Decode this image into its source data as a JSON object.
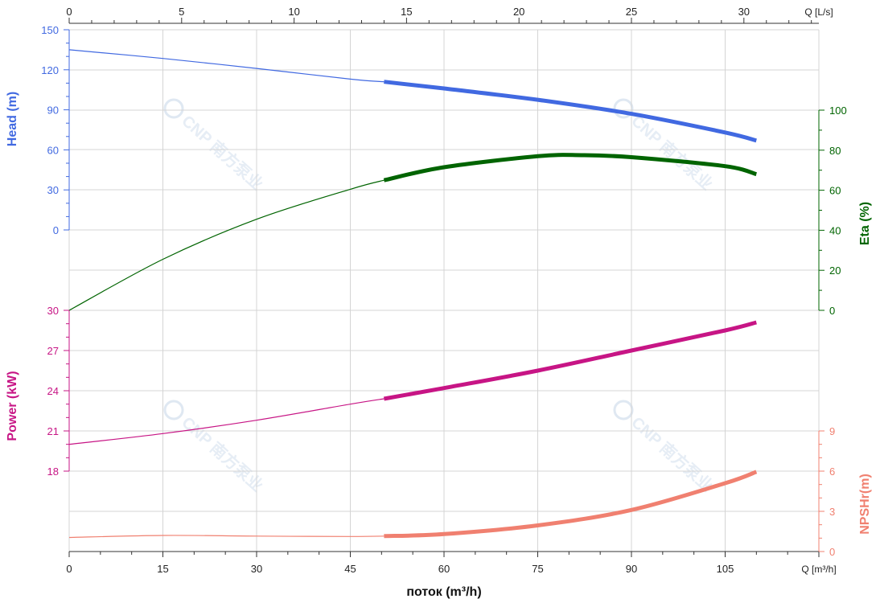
{
  "chart_data": {
    "type": "line",
    "x_axis": {
      "label": "поток (m³/h)",
      "unit_label": "Q [m³/h]",
      "range": [
        0,
        120
      ],
      "ticks": [
        0,
        15,
        30,
        45,
        60,
        75,
        90,
        105
      ]
    },
    "x2_axis": {
      "unit_label": "Q [L/s]",
      "range": [
        0,
        33.333
      ],
      "ticks": [
        0,
        5,
        10,
        15,
        20,
        25,
        30
      ]
    },
    "head_axis": {
      "label": "Head (m)",
      "range": [
        -30,
        150
      ],
      "ticks": [
        0,
        30,
        60,
        90,
        120,
        150
      ],
      "color": "#4169e1"
    },
    "eta_axis": {
      "label": "Eta (%)",
      "range": [
        0,
        120
      ],
      "ticks": [
        0,
        20,
        40,
        60,
        80,
        100
      ],
      "color": "#006400"
    },
    "power_axis": {
      "label": "Power (kW)",
      "range": [
        18,
        30
      ],
      "ticks": [
        18,
        21,
        24,
        27,
        30
      ],
      "color": "#c71585"
    },
    "npsh_axis": {
      "label": "NPSHr(m)",
      "range": [
        0,
        9
      ],
      "ticks": [
        0,
        3,
        6,
        9
      ],
      "color": "#f08070"
    },
    "operating_range": {
      "start": 50.4,
      "end": 110
    },
    "series": [
      {
        "name": "Head (m)",
        "axis": "head",
        "color": "#4169e1",
        "points": [
          [
            0,
            135
          ],
          [
            15,
            128.5
          ],
          [
            30,
            121
          ],
          [
            45,
            113
          ],
          [
            50.4,
            111
          ],
          [
            60,
            106
          ],
          [
            75,
            97.5
          ],
          [
            90,
            87
          ],
          [
            105,
            73
          ],
          [
            110,
            67
          ]
        ]
      },
      {
        "name": "Eta (%)",
        "axis": "eta",
        "color": "#006400",
        "points": [
          [
            0,
            0
          ],
          [
            15,
            25.5
          ],
          [
            30,
            45.5
          ],
          [
            45,
            60.5
          ],
          [
            50.4,
            65
          ],
          [
            60,
            71.5
          ],
          [
            75,
            77
          ],
          [
            82,
            77.5
          ],
          [
            90,
            76.5
          ],
          [
            105,
            72
          ],
          [
            110,
            68
          ]
        ]
      },
      {
        "name": "Power (kW)",
        "axis": "power",
        "color": "#c71585",
        "points": [
          [
            0,
            20
          ],
          [
            15,
            20.8
          ],
          [
            30,
            21.8
          ],
          [
            45,
            23
          ],
          [
            50.4,
            23.4
          ],
          [
            60,
            24.2
          ],
          [
            75,
            25.5
          ],
          [
            90,
            27
          ],
          [
            105,
            28.5
          ],
          [
            110,
            29.1
          ]
        ]
      },
      {
        "name": "NPSHr(m)",
        "axis": "npsh",
        "color": "#f08070",
        "points": [
          [
            0,
            1.05
          ],
          [
            15,
            1.2
          ],
          [
            30,
            1.15
          ],
          [
            45,
            1.12
          ],
          [
            50.4,
            1.15
          ],
          [
            60,
            1.3
          ],
          [
            75,
            1.95
          ],
          [
            90,
            3.1
          ],
          [
            105,
            5.1
          ],
          [
            110,
            5.95
          ]
        ]
      }
    ],
    "grid": true
  }
}
